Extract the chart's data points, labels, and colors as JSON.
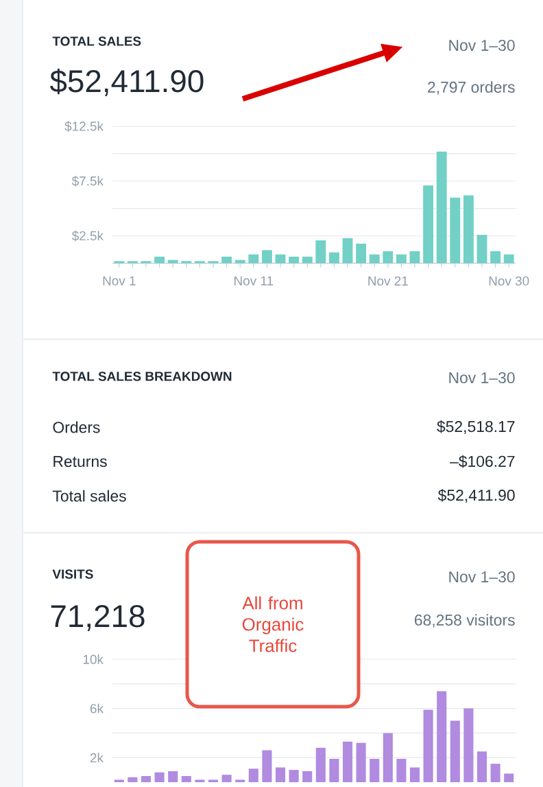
{
  "chart_data": [
    {
      "type": "bar",
      "title": "TOTAL SALES",
      "subtitle": "$52,411.90",
      "annotations": [
        "Nov 1–30",
        "2,797 orders"
      ],
      "categories": [
        "Nov 1",
        null,
        null,
        null,
        null,
        null,
        null,
        null,
        null,
        null,
        "Nov 11",
        null,
        null,
        null,
        null,
        null,
        null,
        null,
        null,
        null,
        "Nov 21",
        null,
        null,
        null,
        null,
        null,
        null,
        null,
        null,
        "Nov 30"
      ],
      "values": [
        200,
        200,
        200,
        600,
        300,
        200,
        200,
        200,
        600,
        300,
        800,
        1200,
        800,
        600,
        600,
        2100,
        1000,
        2300,
        1800,
        800,
        1100,
        800,
        1100,
        7100,
        10200,
        6000,
        6200,
        2600,
        1100,
        800
      ],
      "color": "#72d0c6",
      "ylim": [
        0,
        12500
      ],
      "yticks": [
        {
          "value": 2500,
          "label": "$2.5k"
        },
        {
          "value": 5000,
          "label": null
        },
        {
          "value": 7500,
          "label": "$7.5k"
        },
        {
          "value": 10000,
          "label": null
        },
        {
          "value": 12500,
          "label": "$12.5k"
        }
      ],
      "grid": "y"
    },
    {
      "type": "other",
      "title": "TOTAL SALES BREAKDOWN",
      "annotations": [
        "Nov 1–30",
        "Orders",
        "$52,518.17",
        "Returns",
        "–$106.27",
        "Total sales",
        "$52,411.90"
      ]
    },
    {
      "type": "bar",
      "title": "VISITS",
      "subtitle": "71,218",
      "annotations": [
        "Nov 1–30",
        "68,258 visitors",
        "All from Organic Traffic"
      ],
      "categories": [
        null,
        null,
        null,
        null,
        null,
        null,
        null,
        null,
        null,
        null,
        null,
        null,
        null,
        null,
        null,
        null,
        null,
        null,
        null,
        null,
        null,
        null,
        null,
        null,
        null,
        null,
        null,
        null,
        null,
        null
      ],
      "values": [
        200,
        400,
        500,
        800,
        900,
        500,
        200,
        200,
        600,
        200,
        1100,
        2600,
        1200,
        1000,
        900,
        2800,
        1900,
        3300,
        3200,
        1900,
        4000,
        1900,
        1200,
        5900,
        7400,
        5000,
        6000,
        2500,
        1500,
        700
      ],
      "color": "#b08be0",
      "ylim": [
        0,
        10000
      ],
      "yticks": [
        {
          "value": 2000,
          "label": "2k"
        },
        {
          "value": 4000,
          "label": null
        },
        {
          "value": 6000,
          "label": "6k"
        },
        {
          "value": 8000,
          "label": null
        },
        {
          "value": 10000,
          "label": "10k"
        }
      ],
      "grid": "y",
      "tick_labels": "y"
    }
  ]
}
